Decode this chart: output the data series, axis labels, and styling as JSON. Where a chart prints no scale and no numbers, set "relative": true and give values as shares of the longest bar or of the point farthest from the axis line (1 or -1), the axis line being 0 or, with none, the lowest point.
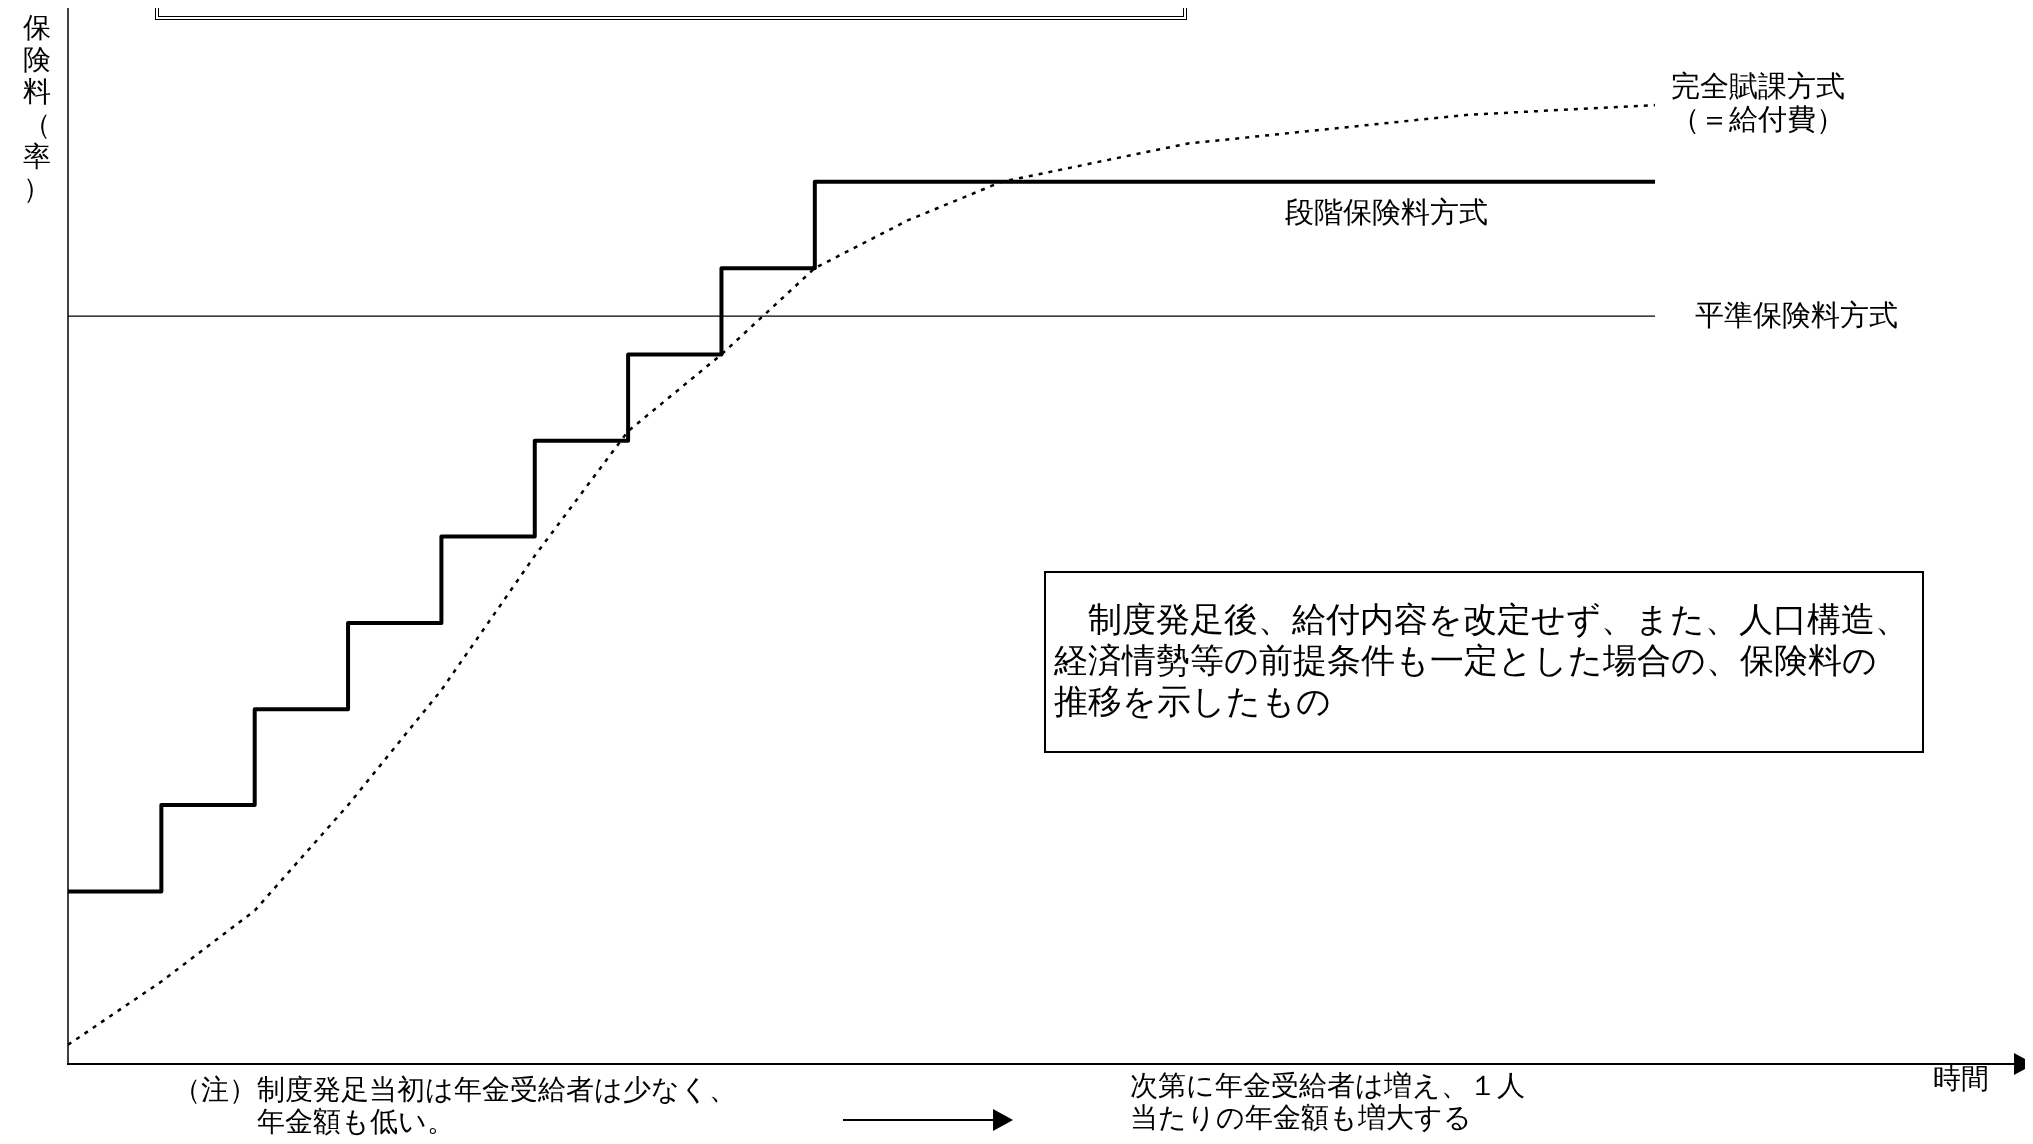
{
  "chart_data": {
    "type": "line",
    "relative": true,
    "ylabel": "保険料（率）",
    "legend": false,
    "grid": false,
    "categories": [
      null,
      null,
      null,
      null,
      null,
      null,
      null,
      null,
      null,
      null,
      null,
      null,
      null,
      null,
      null,
      null,
      null,
      null
    ],
    "series": [
      {
        "name": "段階保険料方式",
        "type": "step",
        "color": "#000000",
        "line_style": "solid",
        "values": [
          0.18,
          0.27,
          0.37,
          0.46,
          0.55,
          0.65,
          0.74,
          0.83,
          0.92,
          0.92,
          0.92,
          0.92,
          0.92,
          0.92,
          0.92,
          0.92,
          0.92,
          0.92
        ]
      },
      {
        "name": "完全賦課方式（＝給付費）",
        "type": "line",
        "color": "#000000",
        "line_style": "dotted",
        "values": [
          0.02,
          0.086,
          0.16,
          0.27,
          0.39,
          0.53,
          0.66,
          0.74,
          0.83,
          0.88,
          0.92,
          0.94,
          0.96,
          0.97,
          0.98,
          0.99,
          0.995,
          1
        ]
      }
    ],
    "ref_lines": [
      {
        "axis": "y",
        "value": 0.78,
        "label": "平準保険料方式",
        "color": "#000000"
      }
    ],
    "annotations": [
      "制度発足後、給付内容を改定せず、また、人口構造、経済情勢等の前提条件も一定とした場合の、保険料の推移を示したもの",
      "（注）制度発足当初は年金受給者は少なく、年金額も低い。",
      "次第に年金受給者は増え、１人当たりの年金額も増大する",
      "時間"
    ]
  }
}
